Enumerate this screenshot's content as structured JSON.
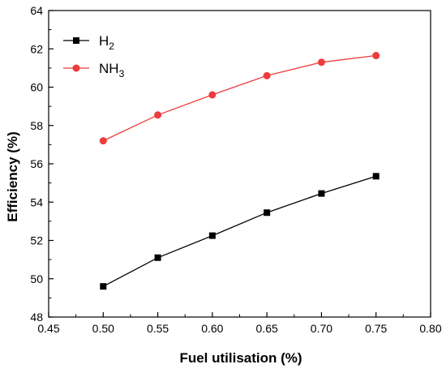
{
  "chart_data": {
    "type": "line",
    "xlabel": "Fuel utilisation (%)",
    "ylabel": "Efficiency (%)",
    "xlim": [
      0.45,
      0.8
    ],
    "ylim": [
      48,
      64
    ],
    "xticks": [
      "0.45",
      "0.50",
      "0.55",
      "0.60",
      "0.65",
      "0.70",
      "0.75",
      "0.80"
    ],
    "yticks": [
      "48",
      "50",
      "52",
      "54",
      "56",
      "58",
      "60",
      "62",
      "64"
    ],
    "x": [
      0.5,
      0.55,
      0.6,
      0.65,
      0.7,
      0.75
    ],
    "legend_position": "top-left",
    "grid": false,
    "series": [
      {
        "name": "H2",
        "label_base": "H",
        "label_sub": "2",
        "color": "#000000",
        "marker": "square",
        "values": [
          49.6,
          51.1,
          52.25,
          53.45,
          54.45,
          55.35
        ]
      },
      {
        "name": "NH3",
        "label_base": "NH",
        "label_sub": "3",
        "color": "#ee3b3b",
        "marker": "circle",
        "values": [
          57.2,
          58.55,
          59.6,
          60.6,
          61.3,
          61.65
        ]
      }
    ]
  }
}
